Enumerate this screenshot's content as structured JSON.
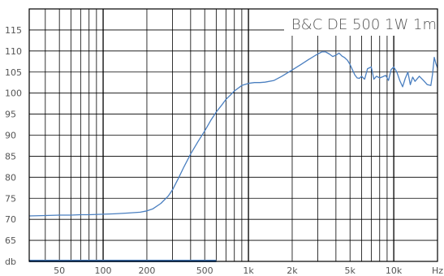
{
  "chart_data": {
    "type": "line",
    "title": "B&C DE 500 1W 1m",
    "xlabel": "",
    "ylabel": "",
    "x_scale": "log",
    "xlim": [
      31,
      20000
    ],
    "ylim": [
      60,
      120
    ],
    "y_ticks": [
      "115",
      "110",
      "105",
      "100",
      "95",
      "90",
      "85",
      "80",
      "75",
      "70",
      "65",
      "db"
    ],
    "x_ticks": [
      "50",
      "100",
      "200",
      "500",
      "1k",
      "2k",
      "5k",
      "10k",
      "Hz"
    ],
    "grid": true,
    "colors": {
      "line": "#4a7fc0",
      "grid": "#000000",
      "bar": "#3a6fb0"
    },
    "series": [
      {
        "x": [
          31,
          40,
          50,
          60,
          70,
          80,
          100,
          120,
          150,
          180,
          200,
          220,
          250,
          280,
          300,
          330,
          360,
          400,
          450,
          500,
          550,
          600,
          650,
          700,
          750,
          800,
          900,
          1000,
          1100,
          1200,
          1300,
          1500,
          1700,
          2000,
          2300,
          2600,
          2900,
          3200,
          3400,
          3600,
          3800,
          4000,
          4200,
          4400,
          4600,
          4800,
          5000,
          5200,
          5400,
          5600,
          5800,
          6000,
          6300,
          6600,
          7000,
          7300,
          7600,
          8000,
          8400,
          8800,
          9200,
          9600,
          10000,
          10500,
          11000,
          11500,
          12000,
          12500,
          13000,
          13500,
          14000,
          15000,
          16000,
          17000,
          18000,
          18500,
          19000,
          19500,
          20000
        ],
        "values": [
          70.8,
          70.9,
          71.0,
          71.0,
          71.1,
          71.1,
          71.2,
          71.3,
          71.5,
          71.7,
          72.0,
          72.5,
          73.8,
          75.5,
          77.0,
          79.8,
          82.5,
          85.5,
          88.5,
          91.0,
          93.5,
          95.5,
          97.0,
          98.5,
          99.5,
          100.5,
          101.8,
          102.3,
          102.5,
          102.5,
          102.6,
          103.0,
          104.0,
          105.5,
          106.8,
          108.0,
          109.0,
          109.8,
          109.8,
          109.3,
          108.7,
          109.0,
          109.5,
          108.8,
          108.4,
          107.8,
          106.8,
          105.5,
          104.3,
          103.6,
          103.5,
          104.0,
          103.3,
          105.8,
          106.2,
          103.3,
          104.0,
          103.6,
          103.9,
          104.2,
          103.0,
          105.6,
          106.2,
          105.0,
          103.0,
          101.5,
          103.5,
          105.0,
          102.0,
          103.8,
          102.8,
          104.0,
          103.0,
          102.0,
          101.8,
          104.5,
          108.5,
          107.0,
          106.0
        ]
      }
    ],
    "band": {
      "x_start": 20,
      "x_end": 600
    }
  }
}
